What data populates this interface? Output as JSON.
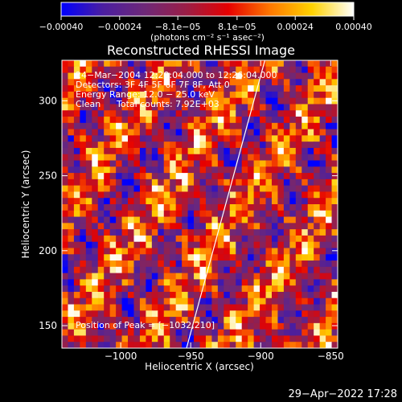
{
  "chart_data": {
    "type": "heatmap",
    "title": "Reconstructed RHESSI Image",
    "xlabel": "Heliocentric X (arcsec)",
    "ylabel": "Heliocentric Y (arcsec)",
    "xlim": [
      -1042,
      -845
    ],
    "ylim": [
      135,
      327
    ],
    "x_ticks": [
      -1000,
      -950,
      -900,
      -850
    ],
    "x_tick_labels": [
      "−1000",
      "−950",
      "−900",
      "−850"
    ],
    "y_ticks": [
      150,
      200,
      250,
      300
    ],
    "y_tick_labels": [
      "150",
      "200",
      "250",
      "300"
    ],
    "colorbar": {
      "ticks": [
        -0.0004,
        -0.00024,
        -8.1e-05,
        8.1e-05,
        0.00024,
        0.0004
      ],
      "tick_labels": [
        "−0.00040",
        "−0.00024",
        "−8.1e−05",
        "8.1e−05",
        "0.00024",
        "0.00040"
      ],
      "units_label": "(photons cm⁻² s⁻¹ asec⁻²)",
      "colormap": [
        "#0000ff",
        "#4b1ea0",
        "#6e2878",
        "#9b1e46",
        "#e60000",
        "#ff7800",
        "#ffd200",
        "#ffffff"
      ]
    },
    "annotations": {
      "time_range": "24−Mar−2004 12:20:04.000 to 12:26:04.000",
      "detectors": "Detectors: 3F 4F 5F 6F 7F 8F, Att 0",
      "energy_range": "Energy Range: 12.0 − 25.0 keV",
      "method": "Clean",
      "total_counts": "Total counts: 7.92E+03",
      "peak": "Position of Peak = [−1032,210]"
    },
    "limb_line": {
      "x": [
        -953,
        -897
      ],
      "y": [
        135,
        327
      ]
    },
    "heatmap": {
      "n_cols": 46,
      "n_rows": 46,
      "value_range": [
        -0.0004,
        0.0004
      ],
      "note": "noisy field with diagonal bright bands running from lower-left to upper-right"
    }
  },
  "footer": {
    "timestamp": "29−Apr−2022 17:28"
  }
}
